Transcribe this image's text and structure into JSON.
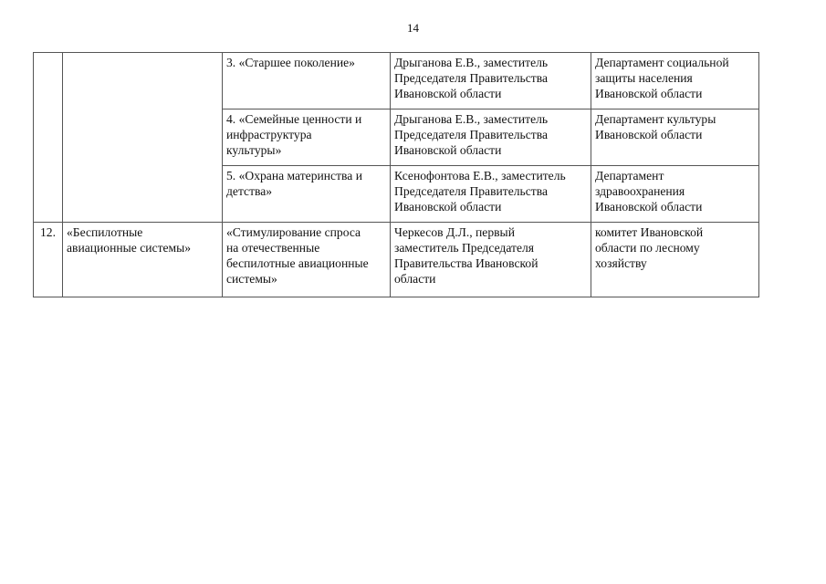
{
  "page_number": "14",
  "table": {
    "rows": [
      {
        "num": "",
        "project": "",
        "subproject": "3. «Старшее поколение»",
        "curator": "Дрыганова Е.В., заместитель\nПредседателя Правительства\nИвановской области",
        "responsible": "Департамент социальной\nзащиты населения\nИвановской области"
      },
      {
        "subproject": "4. «Семейные ценности и\nинфраструктура\nкультуры»",
        "curator": "Дрыганова Е.В., заместитель\nПредседателя Правительства\nИвановской области",
        "responsible": "Департамент культуры\nИвановской области"
      },
      {
        "subproject": "5. «Охрана материнства и\nдетства»",
        "curator": "Ксенофонтова Е.В., заместитель\nПредседателя Правительства\nИвановской области",
        "responsible": "Департамент\nздравоохранения\nИвановской области"
      },
      {
        "num": "12.",
        "project": "«Беспилотные\nавиационные системы»",
        "subproject": "«Стимулирование спроса\nна отечественные\nбеспилотные авиационные\nсистемы»",
        "curator": "Черкесов Д.Л., первый\nзаместитель Председателя\nПравительства Ивановской\nобласти",
        "responsible": "комитет Ивановской\nобласти по лесному\nхозяйству"
      }
    ]
  }
}
